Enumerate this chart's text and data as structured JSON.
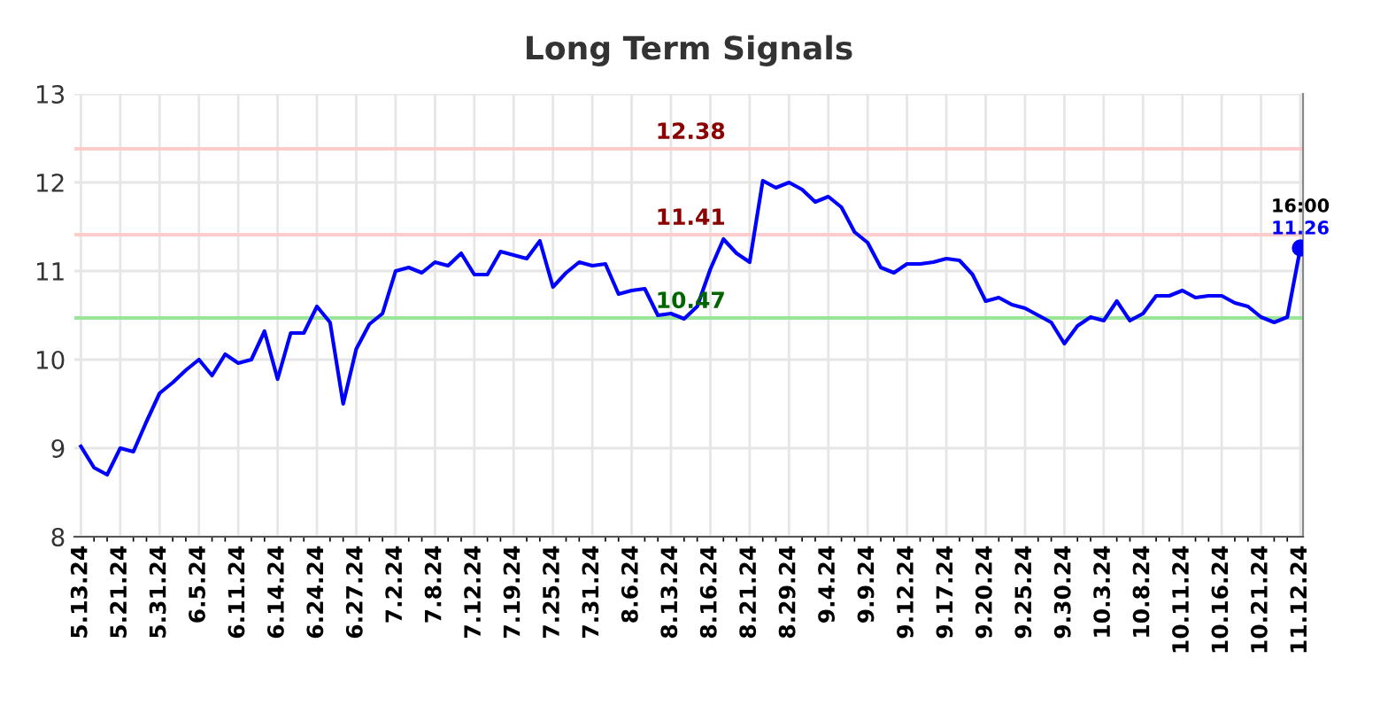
{
  "chart_data": {
    "type": "line",
    "title": "Long Term Signals",
    "categories": [
      "5.13.24",
      null,
      null,
      "5.21.24",
      null,
      null,
      "5.31.24",
      null,
      null,
      "6.5.24",
      null,
      null,
      "6.11.24",
      null,
      null,
      "6.14.24",
      null,
      null,
      "6.24.24",
      null,
      null,
      "6.27.24",
      null,
      null,
      "7.2.24",
      null,
      null,
      "7.8.24",
      null,
      null,
      "7.12.24",
      null,
      null,
      "7.19.24",
      null,
      null,
      "7.25.24",
      null,
      null,
      "7.31.24",
      null,
      null,
      "8.6.24",
      null,
      null,
      "8.13.24",
      null,
      null,
      "8.16.24",
      null,
      null,
      "8.21.24",
      null,
      null,
      "8.29.24",
      null,
      null,
      "9.4.24",
      null,
      null,
      "9.9.24",
      null,
      null,
      "9.12.24",
      null,
      null,
      "9.17.24",
      null,
      null,
      "9.20.24",
      null,
      null,
      "9.25.24",
      null,
      null,
      "9.30.24",
      null,
      null,
      "10.3.24",
      null,
      null,
      "10.8.24",
      null,
      null,
      "10.11.24",
      null,
      null,
      "10.16.24",
      null,
      null,
      "10.21.24",
      null,
      null,
      "11.12.24"
    ],
    "series": [
      {
        "color": "#0000ff",
        "values": [
          9.02,
          8.78,
          8.7,
          9.0,
          8.96,
          9.3,
          9.62,
          9.74,
          9.88,
          10.0,
          9.82,
          10.06,
          9.96,
          10.0,
          10.32,
          9.78,
          10.3,
          10.3,
          10.6,
          10.42,
          9.5,
          10.12,
          10.4,
          10.52,
          11.0,
          11.04,
          10.98,
          11.1,
          11.06,
          11.2,
          10.96,
          10.96,
          11.22,
          11.18,
          11.14,
          11.34,
          10.82,
          10.98,
          11.1,
          11.06,
          11.08,
          10.74,
          10.78,
          10.8,
          10.5,
          10.52,
          10.46,
          10.6,
          11.02,
          11.36,
          11.2,
          11.1,
          12.02,
          11.94,
          12.0,
          11.92,
          11.78,
          11.84,
          11.72,
          11.44,
          11.32,
          11.04,
          10.98,
          11.08,
          11.08,
          11.1,
          11.14,
          11.12,
          10.96,
          10.66,
          10.7,
          10.62,
          10.58,
          10.5,
          10.42,
          10.18,
          10.38,
          10.48,
          10.44,
          10.66,
          10.44,
          10.52,
          10.72,
          10.72,
          10.78,
          10.7,
          10.72,
          10.72,
          10.64,
          10.6,
          10.48,
          10.42,
          10.48,
          11.26
        ]
      }
    ],
    "ylim": [
      8,
      13
    ],
    "yticks": [
      8,
      9,
      10,
      11,
      12,
      13
    ],
    "grid": true,
    "legend": false,
    "ref_lines": [
      {
        "axis": "y",
        "value": 12.38,
        "label": "12.38",
        "color": "#ffcccc"
      },
      {
        "axis": "y",
        "value": 11.41,
        "label": "11.41",
        "color": "#ffcccc"
      },
      {
        "axis": "y",
        "value": 10.47,
        "label": "10.47",
        "color": "#99e699"
      }
    ],
    "annotations": [
      {
        "text": "16:00",
        "x": "11.12.24",
        "y": 11.26
      },
      {
        "text": "11.26",
        "x": "11.12.24",
        "y": 11.26
      }
    ]
  }
}
